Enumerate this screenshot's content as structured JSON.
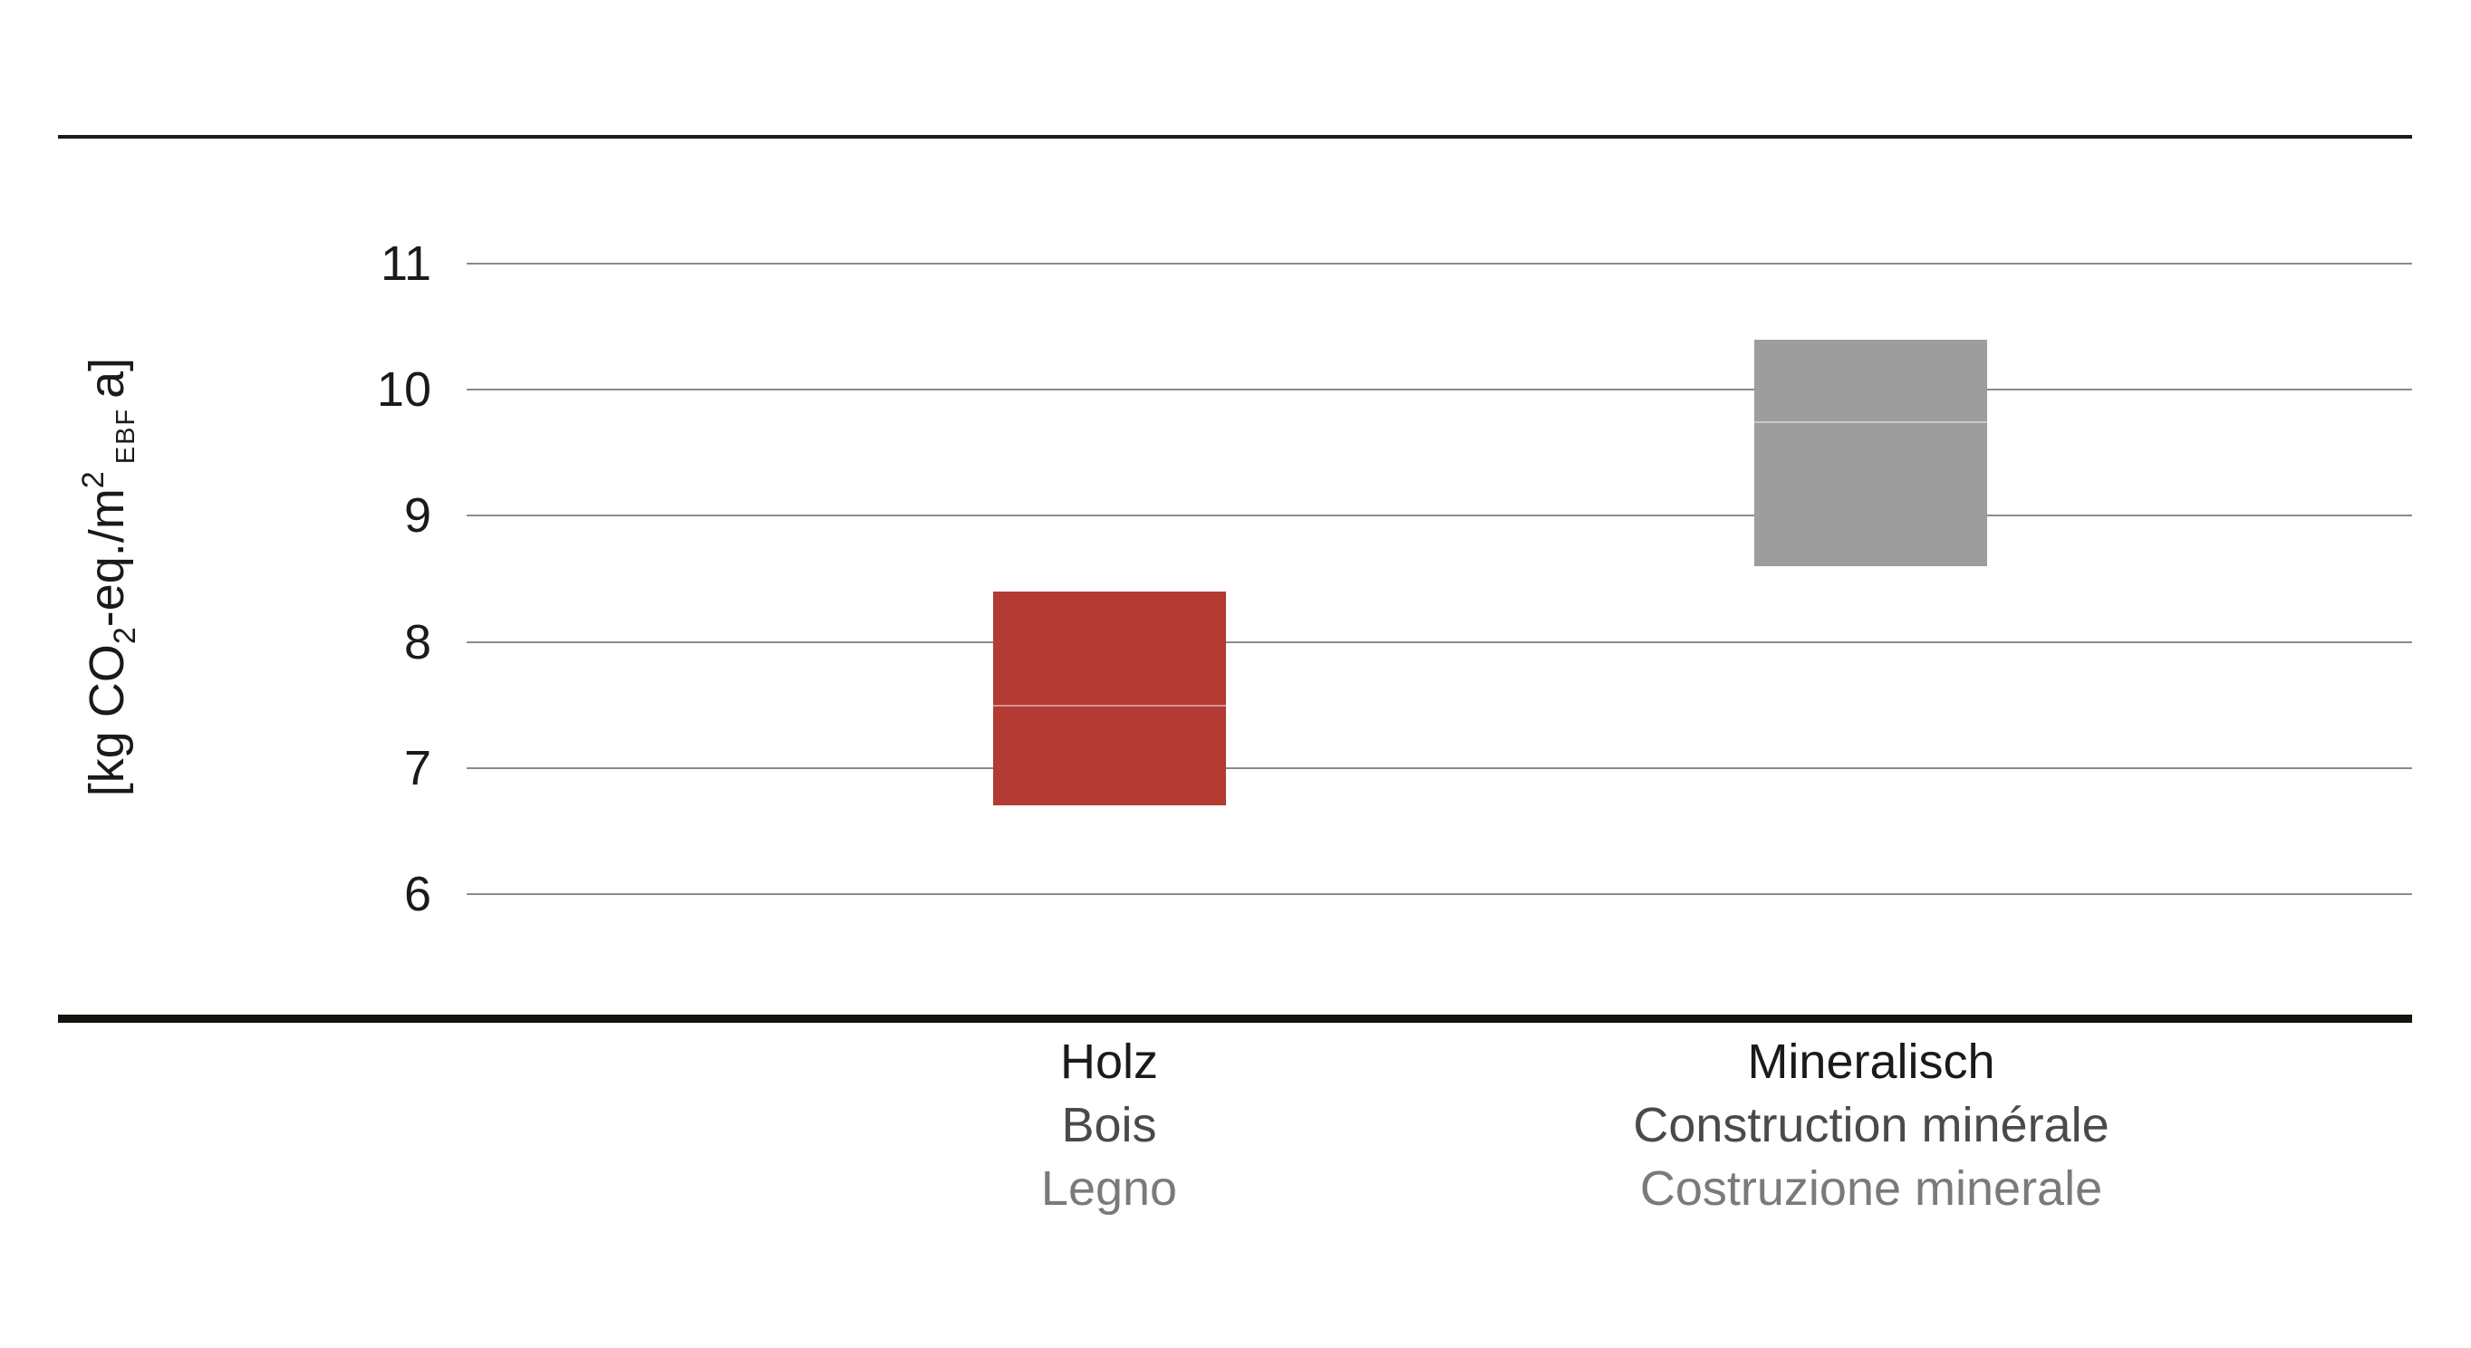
{
  "figure": {
    "y_axis": {
      "label_parts": {
        "p1": "[kg CO",
        "sub1": "2",
        "p2": "-eq./m",
        "sup1": "2",
        "sub2": "EBF",
        "p3": "a]"
      }
    }
  },
  "colors": {
    "bar_wood": "#b33b34",
    "bar_mineral": "#9d9d9d",
    "gridline": "#8a8a8a",
    "axis_rule_top": "#1a1a17",
    "axis_rule_bottom": "#14140f",
    "label_line1": "#1a1a1a",
    "label_line2": "#4a4a4a",
    "label_line3": "#7a7a7a"
  },
  "chart_data": {
    "type": "bar",
    "subtype": "floating_range_columns",
    "title": "",
    "xlabel": "",
    "ylabel": "[kg CO2-eq./m2 EBF a]",
    "ylim": [
      5,
      12
    ],
    "yticks": [
      6,
      7,
      8,
      9,
      10,
      11
    ],
    "grid": "horizontal_gridlines_on",
    "legend_position": "none",
    "categories": [
      {
        "id": "holz",
        "label_lines": [
          "Holz",
          "Bois",
          "Legno"
        ]
      },
      {
        "id": "mineralisch",
        "label_lines": [
          "Mineralisch",
          "Construction minérale",
          "Costruzione minerale"
        ]
      }
    ],
    "series": [
      {
        "category_id": "holz",
        "color": "#b33b34",
        "range_min": 6.7,
        "range_max": 8.4,
        "segment_boundary": 7.5
      },
      {
        "category_id": "mineralisch",
        "color": "#9d9d9d",
        "range_min": 8.6,
        "range_max": 10.4,
        "segment_boundary": 9.75
      }
    ]
  }
}
